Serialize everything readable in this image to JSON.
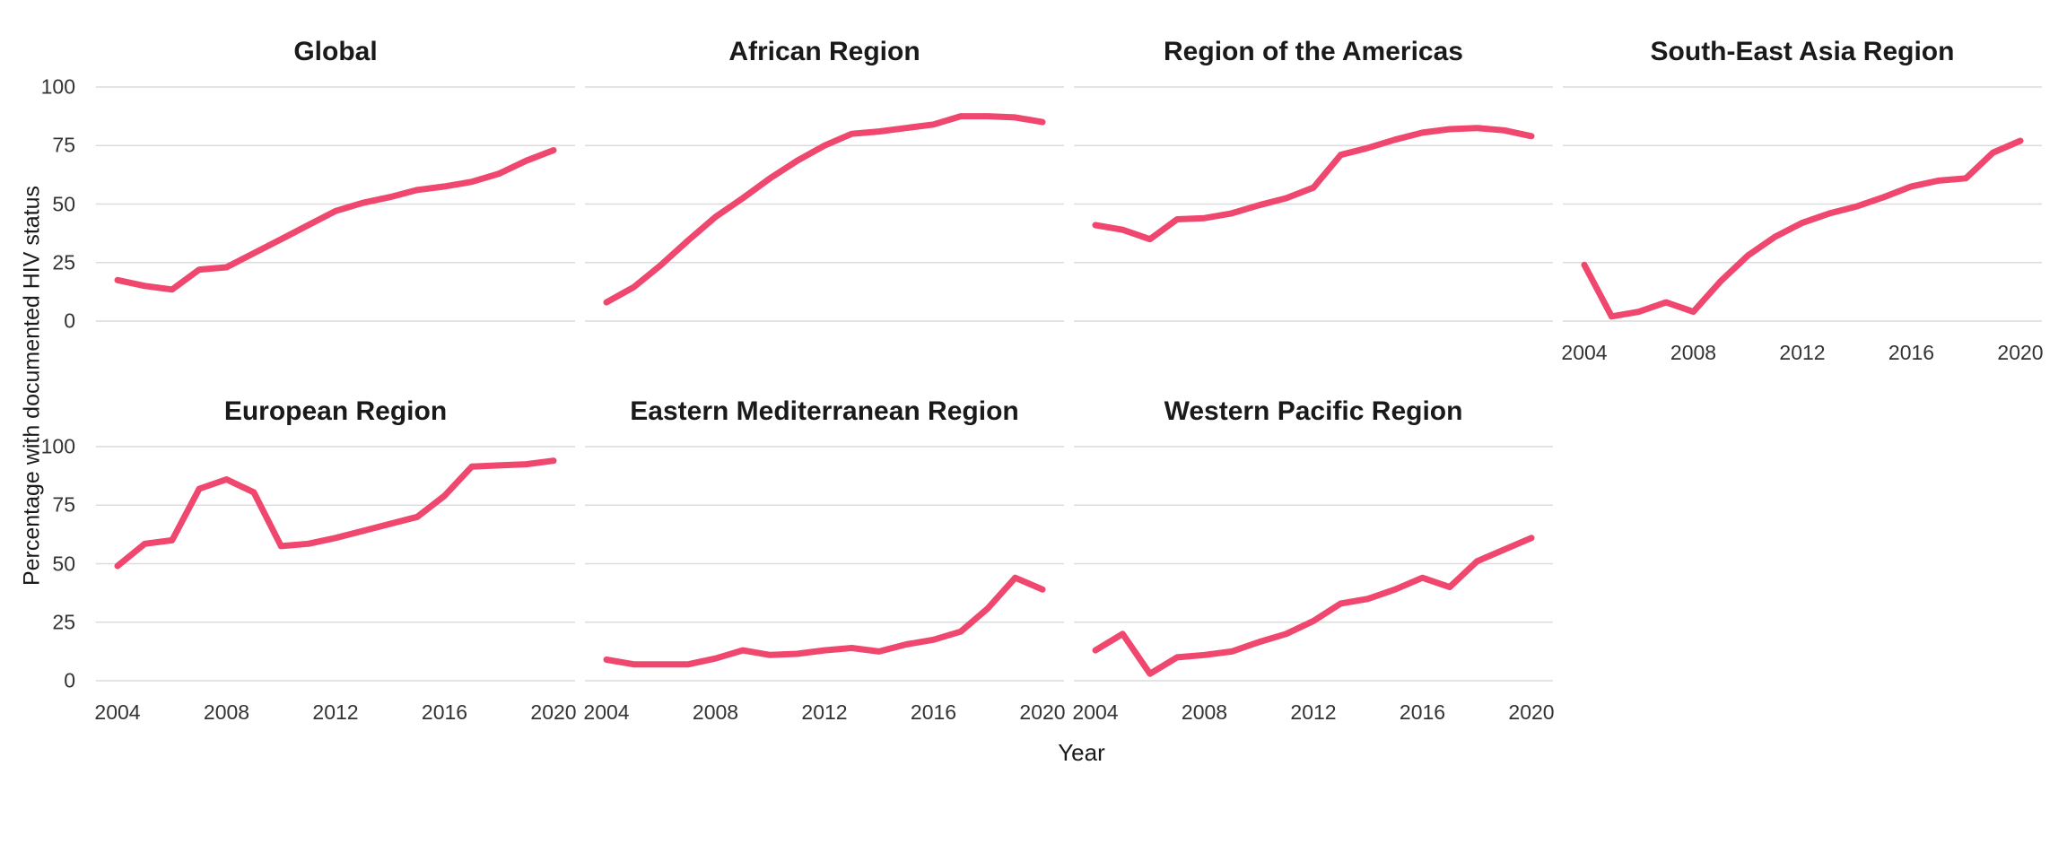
{
  "figure": {
    "y_axis_title": "Percentage with documented HIV status",
    "x_axis_title": "Year",
    "accent_color": "#F0476F",
    "gridline_color": "#DCDCDC",
    "title_color": "#1a1a1a",
    "tick_color": "#333333"
  },
  "chart_data": {
    "type": "line",
    "title": "",
    "x_label": "Year",
    "y_label": "Percentage with documented HIV status",
    "x": [
      2004,
      2005,
      2006,
      2007,
      2008,
      2009,
      2010,
      2011,
      2012,
      2013,
      2014,
      2015,
      2016,
      2017,
      2018,
      2019,
      2020
    ],
    "x_ticks": [
      2004,
      2008,
      2012,
      2016,
      2020
    ],
    "y_ticks": [
      0,
      25,
      50,
      75,
      100
    ],
    "ylim": [
      0,
      100
    ],
    "grid": true,
    "legend": "none",
    "line_color": "#F0476F",
    "layout": {
      "rows": 2,
      "cols": 4
    },
    "facets": [
      {
        "title": "Global",
        "row": 0,
        "col": 0,
        "show_x_axis": false,
        "values": [
          17.5,
          15,
          13.5,
          22,
          23,
          29,
          35,
          41,
          47,
          50.5,
          53,
          56,
          57.5,
          59.5,
          63,
          68.5,
          73
        ]
      },
      {
        "title": "African Region",
        "row": 0,
        "col": 1,
        "show_x_axis": false,
        "values": [
          8,
          14.5,
          24,
          34.5,
          44.5,
          52.5,
          61,
          68.5,
          75,
          80,
          81,
          82.5,
          84,
          87.5,
          87.5,
          87,
          85
        ]
      },
      {
        "title": "Region of the Americas",
        "row": 0,
        "col": 2,
        "show_x_axis": false,
        "values": [
          41,
          39,
          35,
          43.5,
          44,
          46,
          49.5,
          52.5,
          57,
          71,
          74,
          77.5,
          80.5,
          82,
          82.5,
          81.5,
          79
        ]
      },
      {
        "title": "South-East Asia Region",
        "row": 0,
        "col": 3,
        "show_x_axis": true,
        "values": [
          24,
          2,
          4,
          8,
          4,
          17,
          28,
          36,
          42,
          46,
          49,
          53,
          57.5,
          60,
          61,
          72,
          77
        ]
      },
      {
        "title": "European Region",
        "row": 1,
        "col": 0,
        "show_x_axis": true,
        "values": [
          49,
          58.5,
          60,
          82,
          86,
          80.5,
          57.5,
          58.5,
          61,
          64,
          67,
          70,
          79,
          91.5,
          92,
          92.5,
          94
        ]
      },
      {
        "title": "Eastern Mediterranean Region",
        "row": 1,
        "col": 1,
        "show_x_axis": true,
        "values": [
          9,
          7,
          7,
          7,
          9.5,
          13,
          11,
          11.5,
          13,
          14,
          12.5,
          15.5,
          17.5,
          21,
          31,
          44,
          39
        ]
      },
      {
        "title": "Western Pacific Region",
        "row": 1,
        "col": 2,
        "show_x_axis": true,
        "values": [
          13,
          20,
          3,
          10,
          11,
          12.5,
          16.5,
          20,
          25.5,
          33,
          35,
          39,
          44,
          40,
          51,
          56,
          61
        ]
      }
    ]
  }
}
